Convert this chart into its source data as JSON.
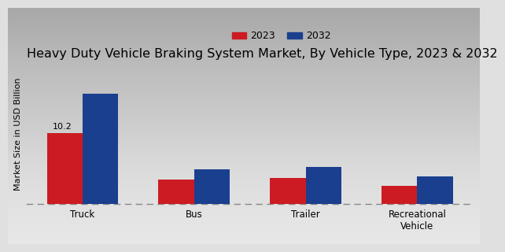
{
  "title": "Heavy Duty Vehicle Braking System Market, By Vehicle Type, 2023 & 2032",
  "ylabel": "Market Size in USD Billion",
  "categories": [
    "Truck",
    "Bus",
    "Trailer",
    "Recreational\nVehicle"
  ],
  "values_2023": [
    10.2,
    3.5,
    3.7,
    2.6
  ],
  "values_2032": [
    15.8,
    5.0,
    5.3,
    4.0
  ],
  "color_2023": "#cc1b22",
  "color_2032": "#1a3f8f",
  "bar_annotation": "10.2",
  "legend_labels": [
    "2023",
    "2032"
  ],
  "background_color_top": "#d0d0d0",
  "background_color_bottom": "#f5f5f5",
  "bottom_bar_color": "#cc0000",
  "ylim": [
    0,
    20
  ],
  "bar_width": 0.32,
  "title_fontsize": 11.5,
  "axis_label_fontsize": 8,
  "tick_fontsize": 8.5,
  "legend_fontsize": 9,
  "annotation_fontsize": 8
}
